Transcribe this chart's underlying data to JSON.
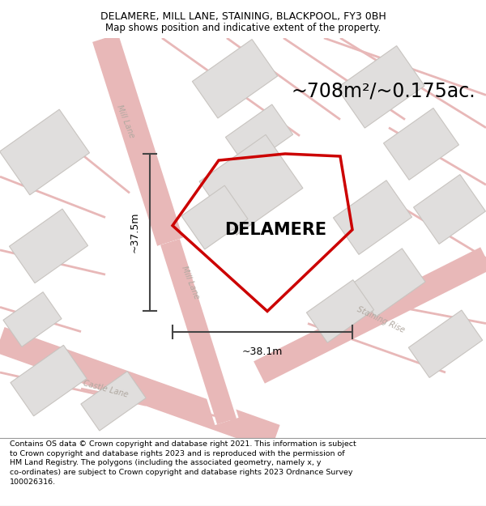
{
  "title": "DELAMERE, MILL LANE, STAINING, BLACKPOOL, FY3 0BH",
  "subtitle": "Map shows position and indicative extent of the property.",
  "footer": "Contains OS data © Crown copyright and database right 2021. This information is subject to Crown copyright and database rights 2023 and is reproduced with the permission of HM Land Registry. The polygons (including the associated geometry, namely x, y co-ordinates) are subject to Crown copyright and database rights 2023 Ordnance Survey 100026316.",
  "area_label": "~708m²/~0.175ac.",
  "property_name": "DELAMERE",
  "dim_width": "~38.1m",
  "dim_height": "~37.5m",
  "map_bg": "#f7f5f3",
  "road_color": "#e8b8b8",
  "building_face": "#e0dedd",
  "building_edge": "#c8c4c0",
  "plot_color": "#cc0000",
  "road_label_color": "#b0a8a0",
  "title_fontsize": 9,
  "subtitle_fontsize": 8.5,
  "footer_fontsize": 6.8,
  "area_fontsize": 17,
  "name_fontsize": 15,
  "dim_fontsize": 9
}
